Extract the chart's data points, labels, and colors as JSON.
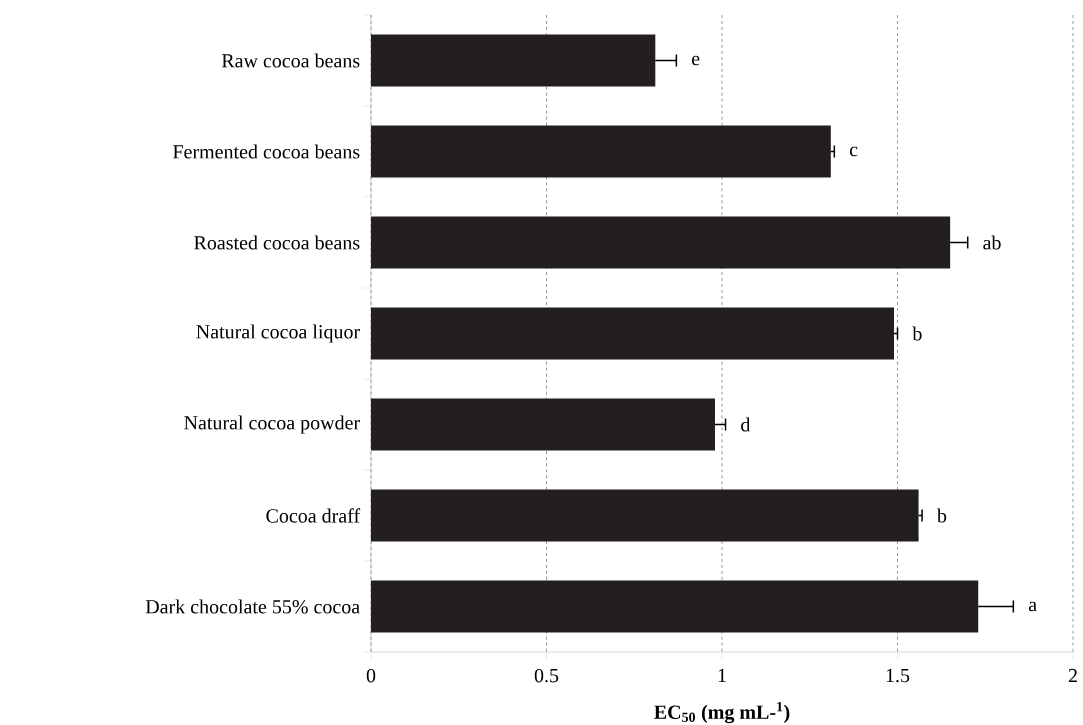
{
  "chart_data": {
    "type": "bar",
    "orientation": "horizontal",
    "categories": [
      "Raw cocoa beans",
      "Fermented cocoa beans",
      "Roasted cocoa beans",
      "Natural cocoa liquor",
      "Natural cocoa powder",
      "Cocoa draff",
      "Dark chocolate 55% cocoa"
    ],
    "values": [
      0.81,
      1.31,
      1.65,
      1.49,
      0.98,
      1.56,
      1.73
    ],
    "errors": [
      0.06,
      0.01,
      0.05,
      0.01,
      0.03,
      0.01,
      0.1
    ],
    "color": "#231f20",
    "xlabel": "EC$_{50}$ (mg mL-$^{1}$)",
    "xlim": [
      0,
      2
    ],
    "xticks": [
      0,
      0.5,
      1,
      1.5,
      2
    ],
    "grid": "x",
    "value_labels": [
      "e",
      "c",
      "ab",
      "b",
      "d",
      "b",
      "a"
    ]
  }
}
